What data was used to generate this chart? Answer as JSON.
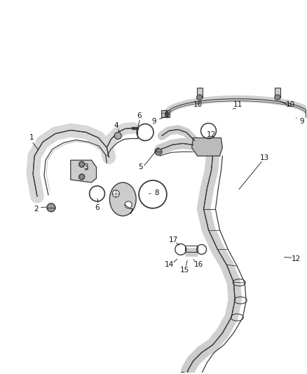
{
  "background_color": "#ffffff",
  "figsize": [
    4.38,
    5.33
  ],
  "dpi": 100,
  "line_color": "#3a3a3a",
  "label_fontsize": 7.5,
  "label_color": "#111111",
  "tube_fill": "#d8d8d8",
  "tube_fill2": "#c0c0c0"
}
